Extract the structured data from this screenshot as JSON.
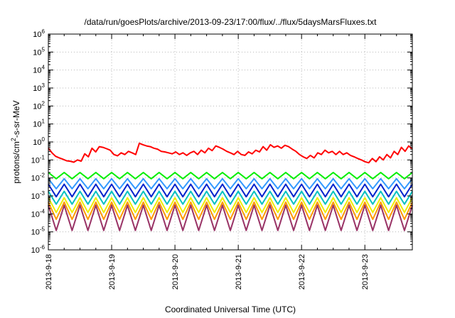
{
  "chart_data": {
    "type": "line",
    "title": "/data/run/goesPlots/archive/2013-09-23/17:00/flux/../flux/5daysMarsFluxes.txt",
    "xlabel": "Coordinated Universal Time (UTC)",
    "ylabel": {
      "prefix": "protons/cm",
      "superscript": "2",
      "suffix": "-s-sr-MeV"
    },
    "y_scale": "log",
    "ylim": [
      1e-06,
      1000000.0
    ],
    "y_ticks": [
      {
        "base": "10",
        "exp": "-6"
      },
      {
        "base": "10",
        "exp": "-5"
      },
      {
        "base": "10",
        "exp": "-4"
      },
      {
        "base": "10",
        "exp": "-3"
      },
      {
        "base": "10",
        "exp": "-2"
      },
      {
        "base": "10",
        "exp": "-1"
      },
      {
        "base": "10",
        "exp": "0"
      },
      {
        "base": "10",
        "exp": "1"
      },
      {
        "base": "10",
        "exp": "2"
      },
      {
        "base": "10",
        "exp": "3"
      },
      {
        "base": "10",
        "exp": "4"
      },
      {
        "base": "10",
        "exp": "5"
      },
      {
        "base": "10",
        "exp": "6"
      }
    ],
    "xlim": [
      "2013-09-18",
      "2013-09-23 18:00"
    ],
    "x_ticks": [
      "2013-9-18",
      "2013-9-19",
      "2013-9-20",
      "2013-9-21",
      "2013-9-22",
      "2013-9-23"
    ],
    "grid": true,
    "legend": "none",
    "sample_interval_hours": 3,
    "series": [
      {
        "color": "#ff0000",
        "values": [
          0.45,
          0.25,
          0.16,
          0.13,
          0.11,
          0.09,
          0.085,
          0.075,
          0.1,
          0.085,
          0.22,
          0.15,
          0.45,
          0.28,
          0.55,
          0.5,
          0.42,
          0.35,
          0.2,
          0.17,
          0.25,
          0.2,
          0.3,
          0.25,
          0.2,
          0.85,
          0.7,
          0.6,
          0.55,
          0.45,
          0.4,
          0.3,
          0.28,
          0.25,
          0.22,
          0.28,
          0.2,
          0.25,
          0.18,
          0.25,
          0.3,
          0.2,
          0.35,
          0.25,
          0.45,
          0.33,
          0.6,
          0.5,
          0.4,
          0.3,
          0.25,
          0.2,
          0.3,
          0.2,
          0.18,
          0.28,
          0.22,
          0.35,
          0.28,
          0.55,
          0.35,
          0.7,
          0.5,
          0.6,
          0.45,
          0.65,
          0.55,
          0.4,
          0.3,
          0.2,
          0.15,
          0.12,
          0.18,
          0.13,
          0.25,
          0.2,
          0.35,
          0.25,
          0.3,
          0.2,
          0.3,
          0.2,
          0.25,
          0.18,
          0.15,
          0.12,
          0.1,
          0.08,
          0.07,
          0.12,
          0.08,
          0.15,
          0.1,
          0.2,
          0.13,
          0.3,
          0.2,
          0.5,
          0.3,
          0.6,
          0.4
        ]
      },
      {
        "color": "#00ee00",
        "sawtooth": {
          "high": 0.02,
          "low": 0.009,
          "period_steps": 2
        }
      },
      {
        "color": "#3399ff",
        "sawtooth": {
          "high": 0.009,
          "low": 0.0025,
          "period_steps": 2
        }
      },
      {
        "color": "#0022cc",
        "sawtooth": {
          "high": 0.0045,
          "low": 0.0009,
          "period_steps": 2
        }
      },
      {
        "color": "#00c0c0",
        "sawtooth": {
          "high": 0.0018,
          "low": 0.00035,
          "period_steps": 2
        }
      },
      {
        "color": "#eeee00",
        "sawtooth": {
          "high": 0.0008,
          "low": 0.00012,
          "period_steps": 2
        }
      },
      {
        "color": "#ff9900",
        "sawtooth": {
          "high": 0.00045,
          "low": 5e-05,
          "period_steps": 2
        }
      },
      {
        "color": "#993366",
        "sawtooth": {
          "high": 0.0003,
          "low": 1.2e-05,
          "period_steps": 2
        }
      }
    ]
  }
}
